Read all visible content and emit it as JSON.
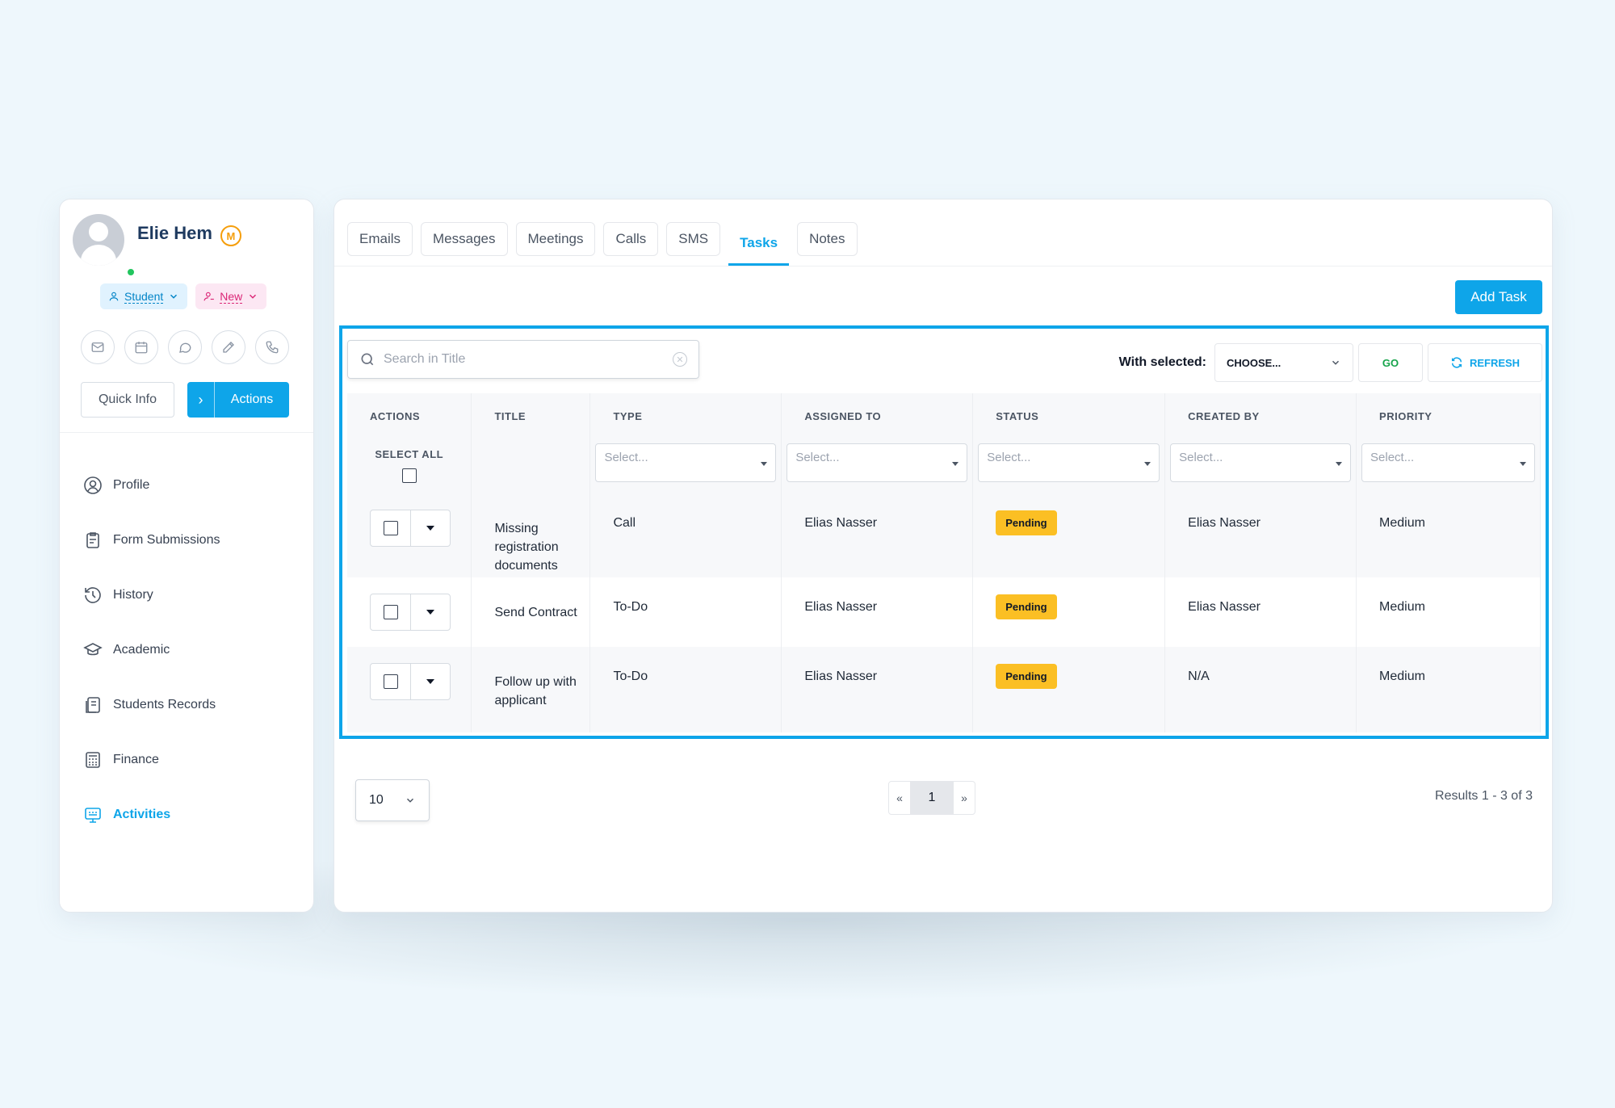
{
  "profile": {
    "name": "Elie Hem",
    "badge_letter": "M",
    "chip_student": "Student",
    "chip_new": "New",
    "quick_info": "Quick Info",
    "actions": "Actions",
    "action_icons": [
      "mail-icon",
      "calendar-icon",
      "chat-icon",
      "edit-icon",
      "phone-icon"
    ]
  },
  "nav": [
    {
      "label": "Profile",
      "icon": "user-circle-icon",
      "active": false
    },
    {
      "label": "Form Submissions",
      "icon": "form-icon",
      "active": false
    },
    {
      "label": "History",
      "icon": "history-icon",
      "active": false
    },
    {
      "label": "Academic",
      "icon": "graduation-icon",
      "active": false
    },
    {
      "label": "Students Records",
      "icon": "records-icon",
      "active": false
    },
    {
      "label": "Finance",
      "icon": "calculator-icon",
      "active": false
    },
    {
      "label": "Activities",
      "icon": "activities-icon",
      "active": true
    }
  ],
  "tabs": [
    "Emails",
    "Messages",
    "Meetings",
    "Calls",
    "SMS",
    "Tasks",
    "Notes"
  ],
  "active_tab": "Tasks",
  "add_task": "Add Task",
  "search": {
    "placeholder": "Search in Title"
  },
  "bulk": {
    "label": "With selected:",
    "choose": "CHOOSE...",
    "go": "GO",
    "refresh": "REFRESH"
  },
  "table": {
    "headers": [
      "ACTIONS",
      "TITLE",
      "TYPE",
      "ASSIGNED TO",
      "STATUS",
      "CREATED BY",
      "PRIORITY"
    ],
    "select_all": "SELECT ALL",
    "filter_placeholder": "Select...",
    "rows": [
      {
        "title": "Missing registration documents",
        "type": "Call",
        "assigned_to": "Elias Nasser",
        "status": "Pending",
        "created_by": "Elias Nasser",
        "priority": "Medium"
      },
      {
        "title": "Send Contract",
        "type": "To-Do",
        "assigned_to": "Elias Nasser",
        "status": "Pending",
        "created_by": "Elias Nasser",
        "priority": "Medium"
      },
      {
        "title": "Follow up with applicant",
        "type": "To-Do",
        "assigned_to": "Elias Nasser",
        "status": "Pending",
        "created_by": "N/A",
        "priority": "Medium"
      }
    ]
  },
  "footer": {
    "page_size": "10",
    "prev": "«",
    "page": "1",
    "next": "»",
    "results": "Results 1 - 3 of 3"
  },
  "colors": {
    "accent": "#0ea5e9",
    "pending": "#fbbf24",
    "go": "#16a34a",
    "online": "#22c55e"
  }
}
